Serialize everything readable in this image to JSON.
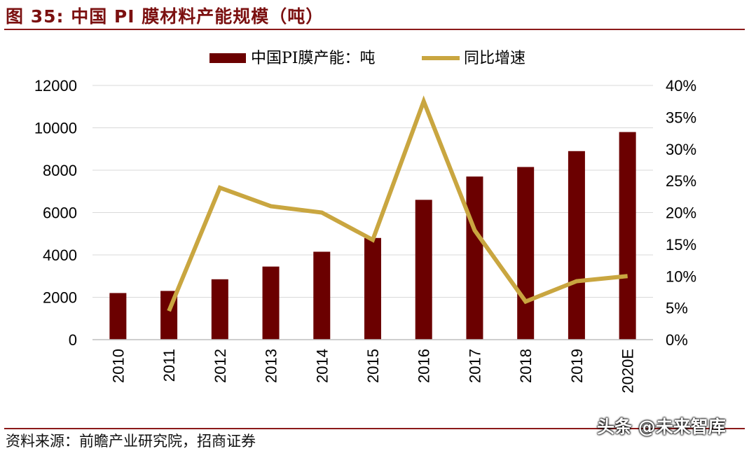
{
  "header": {
    "title": "图 35:  中国 PI 膜材料产能规模（吨）"
  },
  "footer": {
    "source": "资料来源：前瞻产业研究院，招商证券",
    "watermark": "头条 @未来智库"
  },
  "colors": {
    "bar": "#6b0000",
    "line": "#c9a640",
    "accent": "#8b1a1a"
  },
  "chart_data": {
    "type": "bar",
    "categories": [
      "2010",
      "2011",
      "2012",
      "2013",
      "2014",
      "2015",
      "2016",
      "2017",
      "2018",
      "2019",
      "2020E"
    ],
    "series": [
      {
        "name": "中国PI膜产能：吨",
        "type": "bar",
        "axis": "left",
        "values": [
          2200,
          2300,
          2850,
          3450,
          4150,
          4800,
          6600,
          7700,
          8150,
          8900,
          9800
        ]
      },
      {
        "name": "同比增速",
        "type": "line",
        "axis": "right",
        "values": [
          null,
          0.045,
          0.239,
          0.21,
          0.2,
          0.157,
          0.375,
          0.172,
          0.06,
          0.092,
          0.1
        ]
      }
    ],
    "y_left": {
      "min": 0,
      "max": 12000,
      "ticks": [
        "0",
        "2000",
        "4000",
        "6000",
        "8000",
        "10000",
        "12000"
      ]
    },
    "y_right": {
      "min": 0,
      "max": 0.4,
      "ticks": [
        "0%",
        "5%",
        "10%",
        "15%",
        "20%",
        "25%",
        "30%",
        "35%",
        "40%"
      ]
    },
    "grid": true,
    "legend_position": "top"
  }
}
